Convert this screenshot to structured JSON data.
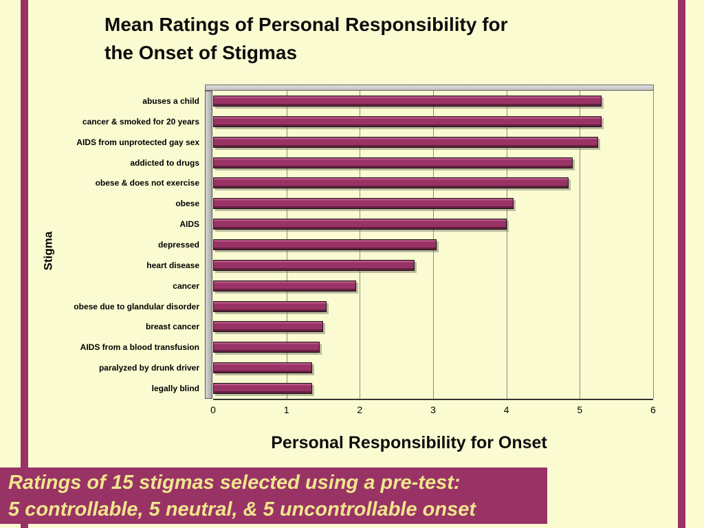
{
  "slide": {
    "title_line1": "Mean Ratings of Personal Responsibility for",
    "title_line2": "the Onset of Stigmas",
    "caption_line1": "Ratings of 15 stigmas selected using a pre-test:",
    "caption_line2": "5 controllable, 5 neutral, & 5 uncontrollable onset",
    "colors": {
      "background": "#FBFBD2",
      "accent_maroon": "#993366",
      "caption_text": "#F0E68C",
      "gridline": "#8a8a7a"
    }
  },
  "chart_data": {
    "type": "bar",
    "orientation": "horizontal",
    "title": "Mean Ratings of Personal Responsibility for the Onset of Stigmas",
    "xlabel": "Personal Responsibility for Onset",
    "ylabel": "Stigma",
    "xlim": [
      0,
      6
    ],
    "xticks": [
      0,
      1,
      2,
      3,
      4,
      5,
      6
    ],
    "grid": "vertical",
    "bar_color": "#993366",
    "categories": [
      "abuses a child",
      "cancer & smoked for 20 years",
      "AIDS from unprotected gay sex",
      "addicted to drugs",
      "obese & does not exercise",
      "obese",
      "AIDS",
      "depressed",
      "heart disease",
      "cancer",
      "obese due to glandular disorder",
      "breast cancer",
      "AIDS from a blood transfusion",
      "paralyzed by drunk driver",
      "legally blind"
    ],
    "values": [
      5.3,
      5.3,
      5.25,
      4.9,
      4.85,
      4.1,
      4.0,
      3.05,
      2.75,
      1.95,
      1.55,
      1.5,
      1.45,
      1.35,
      1.35
    ]
  }
}
